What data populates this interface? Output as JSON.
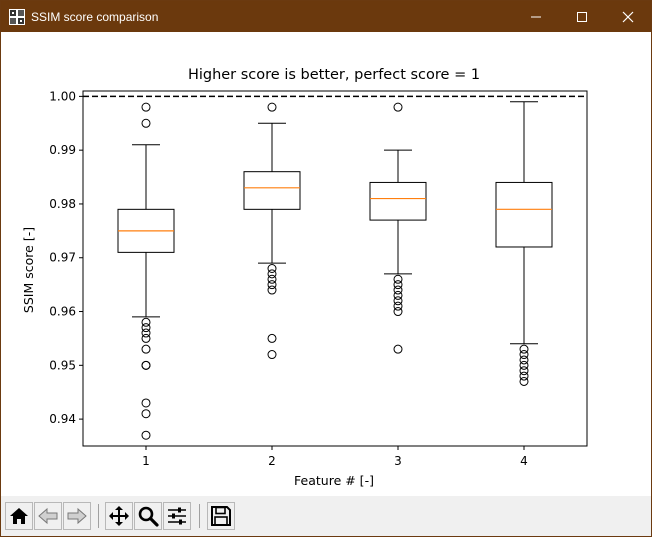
{
  "window": {
    "title": "SSIM score comparison",
    "controls": {
      "minimize": "minimize-icon",
      "maximize": "maximize-icon",
      "close": "close-icon"
    }
  },
  "toolbar": {
    "buttons": [
      {
        "name": "home-button",
        "icon": "home-icon",
        "tooltip": "Reset original view"
      },
      {
        "name": "back-button",
        "icon": "arrow-left-icon",
        "tooltip": "Back to previous view"
      },
      {
        "name": "forward-button",
        "icon": "arrow-right-icon",
        "tooltip": "Forward to next view"
      },
      {
        "name": "pan-button",
        "icon": "move-icon",
        "tooltip": "Pan axes"
      },
      {
        "name": "zoom-button",
        "icon": "magnifier-icon",
        "tooltip": "Zoom to rectangle"
      },
      {
        "name": "subplots-button",
        "icon": "sliders-icon",
        "tooltip": "Configure subplots"
      },
      {
        "name": "save-button",
        "icon": "floppy-disk-icon",
        "tooltip": "Save the figure"
      }
    ]
  },
  "chart_data": {
    "type": "box",
    "title": "Higher score is better, perfect score = 1",
    "xlabel": "Feature # [-]",
    "ylabel": "SSIM score [-]",
    "categories": [
      "1",
      "2",
      "3",
      "4"
    ],
    "ylim": [
      0.935,
      1.001
    ],
    "yticks": [
      "0.94",
      "0.95",
      "0.96",
      "0.97",
      "0.98",
      "0.99",
      "1.00"
    ],
    "reference_line": {
      "y": 1.0,
      "style": "dashed",
      "color": "#000000"
    },
    "median_color": "#ff7f0e",
    "grid": false,
    "series": [
      {
        "category": "1",
        "whisker_low": 0.959,
        "q1": 0.971,
        "median": 0.975,
        "q3": 0.979,
        "whisker_high": 0.991,
        "outliers": [
          0.998,
          0.995,
          0.958,
          0.957,
          0.956,
          0.955,
          0.953,
          0.95,
          0.95,
          0.943,
          0.941,
          0.937
        ]
      },
      {
        "category": "2",
        "whisker_low": 0.969,
        "q1": 0.979,
        "median": 0.983,
        "q3": 0.986,
        "whisker_high": 0.995,
        "outliers": [
          0.998,
          0.968,
          0.967,
          0.966,
          0.965,
          0.964,
          0.955,
          0.952
        ]
      },
      {
        "category": "3",
        "whisker_low": 0.967,
        "q1": 0.977,
        "median": 0.981,
        "q3": 0.984,
        "whisker_high": 0.99,
        "outliers": [
          0.998,
          0.966,
          0.965,
          0.964,
          0.963,
          0.962,
          0.961,
          0.96,
          0.953
        ]
      },
      {
        "category": "4",
        "whisker_low": 0.954,
        "q1": 0.972,
        "median": 0.979,
        "q3": 0.984,
        "whisker_high": 0.999,
        "outliers": [
          0.953,
          0.952,
          0.951,
          0.95,
          0.949,
          0.948,
          0.947
        ]
      }
    ]
  }
}
